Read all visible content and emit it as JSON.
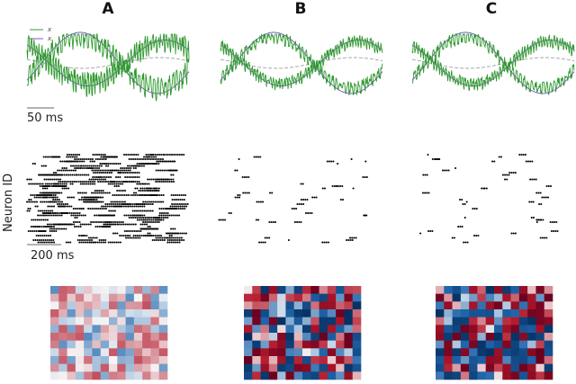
{
  "panels": [
    {
      "label": "A",
      "mode": "noise"
    },
    {
      "label": "B",
      "mode": "structured"
    },
    {
      "label": "C",
      "mode": "structured"
    }
  ],
  "legend": {
    "entries": [
      "x",
      "x"
    ],
    "colors": [
      "#3a9a3a",
      "#8a4fd6"
    ]
  },
  "scalebars": {
    "trace": "50 ms",
    "raster": "200 ms"
  },
  "raster_ylabel": "Neuron ID",
  "colors": {
    "trace_green": "#2f9a2f",
    "trace_purple": "#7f4bd0",
    "trace_gray": "#aaaaaa",
    "spike": "#000000",
    "heat_low": "#053061",
    "heat_mid": "#f7f7f7",
    "heat_high": "#67001f"
  },
  "chart_data": [
    {
      "type": "line",
      "panel": "A",
      "series": [
        {
          "name": "x",
          "role": "network output (noisy)"
        },
        {
          "name": "x",
          "role": "target sinusoid"
        }
      ]
    },
    {
      "type": "line",
      "panel": "B",
      "series": [
        {
          "name": "x",
          "role": "network output"
        },
        {
          "name": "x",
          "role": "target sinusoid"
        }
      ]
    },
    {
      "type": "line",
      "panel": "C",
      "series": [
        {
          "name": "x",
          "role": "network output"
        },
        {
          "name": "x",
          "role": "target sinusoid"
        }
      ]
    },
    {
      "type": "scatter",
      "panel": "A",
      "ylabel": "Neuron ID",
      "xlabel": "",
      "description_scale": "200 ms"
    },
    {
      "type": "scatter",
      "panel": "B"
    },
    {
      "type": "scatter",
      "panel": "C"
    },
    {
      "type": "heatmap",
      "panel": "A",
      "rows": 12,
      "cols": 14,
      "intensity": "low"
    },
    {
      "type": "heatmap",
      "panel": "B",
      "rows": 12,
      "cols": 14,
      "intensity": "high"
    },
    {
      "type": "heatmap",
      "panel": "C",
      "rows": 12,
      "cols": 14,
      "intensity": "high"
    }
  ]
}
